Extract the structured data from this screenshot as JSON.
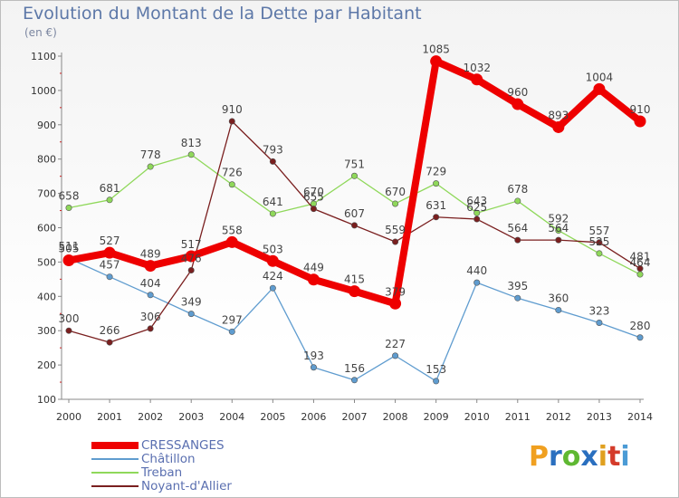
{
  "chart_data": {
    "type": "line",
    "title": "Evolution du Montant de la Dette par Habitant",
    "unit_label": "(en €)",
    "ylim": [
      100,
      1100
    ],
    "yticks": [
      100,
      200,
      300,
      400,
      500,
      600,
      700,
      800,
      900,
      1000,
      1100
    ],
    "x": [
      "2000",
      "2001",
      "2002",
      "2003",
      "2004",
      "2005",
      "2006",
      "2007",
      "2008",
      "2009",
      "2010",
      "2011",
      "2012",
      "2013",
      "2014"
    ],
    "grid": false,
    "legend_position": "bottom-left",
    "series": [
      {
        "name": "CRESSANGES",
        "color": "#ee0000",
        "values": [
          505,
          527,
          489,
          517,
          558,
          503,
          449,
          415,
          379,
          1085,
          1032,
          960,
          893,
          1004,
          910
        ]
      },
      {
        "name": "Châtillon",
        "color": "#5f9ccf",
        "values": [
          511,
          457,
          404,
          349,
          297,
          424,
          193,
          156,
          227,
          153,
          440,
          395,
          360,
          323,
          280
        ]
      },
      {
        "name": "Treban",
        "color": "#8fd85a",
        "values": [
          658,
          681,
          778,
          813,
          726,
          641,
          670,
          751,
          670,
          729,
          643,
          678,
          592,
          525,
          464
        ]
      },
      {
        "name": "Noyant-d'Allier",
        "color": "#7a1f1f",
        "values": [
          300,
          266,
          306,
          476,
          910,
          793,
          655,
          607,
          559,
          631,
          625,
          564,
          564,
          557,
          481
        ]
      }
    ]
  },
  "logo": {
    "letters": [
      "P",
      "r",
      "o",
      "x",
      "i",
      "t",
      "i"
    ],
    "colors": [
      "#f0a020",
      "#2a6fbf",
      "#5fb832",
      "#2a6fbf",
      "#e0a020",
      "#d43b2a",
      "#4b9bd5"
    ]
  }
}
